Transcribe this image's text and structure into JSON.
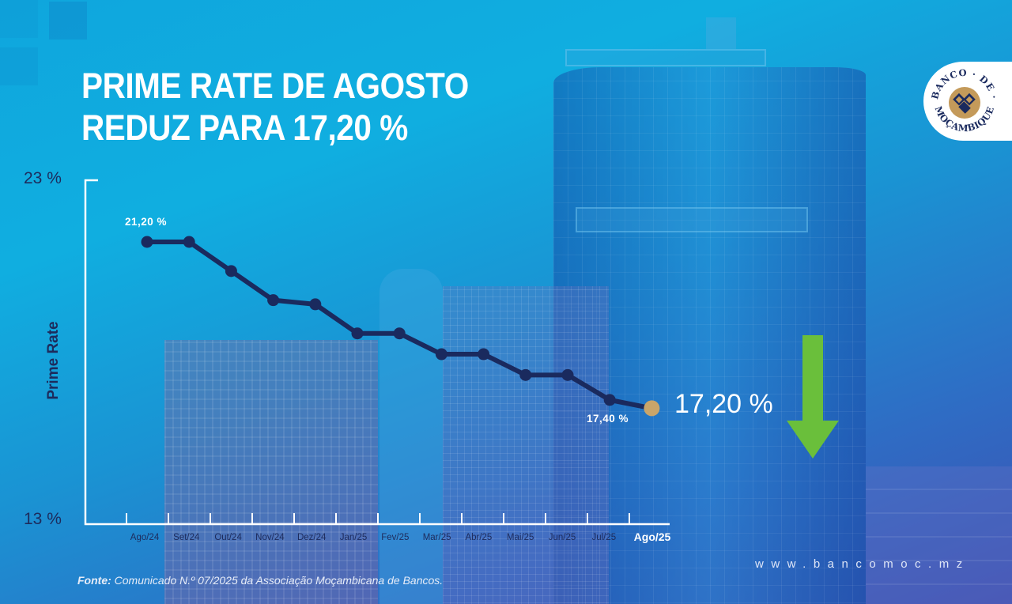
{
  "headline": {
    "line1": "PRIME RATE DE AGOSTO",
    "line2": "REDUZ PARA 17,20 %"
  },
  "logo": {
    "text_top": "BANCO · DE ·",
    "text_bottom": "MOÇAMBIQUE",
    "icon": "banco-de-mocambique-emblem"
  },
  "current_value": "17,20 %",
  "trend_icon": "arrow-down-icon",
  "source": {
    "label": "Fonte:",
    "text": "Comunicado N.º 07/2025 da Associação Moçambicana de Bancos."
  },
  "website": "www.bancomoc.mz",
  "colors": {
    "line": "#1a2a5e",
    "marker": "#1a2a5e",
    "highlight_marker": "#c9a56a",
    "arrow": "#6abf3b",
    "text_dark": "#1d2b5c",
    "text_light": "#ffffff"
  },
  "chart_data": {
    "type": "line",
    "title": "PRIME RATE DE AGOSTO REDUZ PARA 17,20 %",
    "xlabel": "",
    "ylabel": "Prime Rate",
    "ylim": [
      13,
      23
    ],
    "y_tick_labels": [
      "23 %",
      "13 %"
    ],
    "grid": false,
    "legend": null,
    "categories": [
      "Ago/24",
      "Set/24",
      "Out/24",
      "Nov/24",
      "Dez/24",
      "Jan/25",
      "Fev/25",
      "Mar/25",
      "Abr/25",
      "Mai/25",
      "Jun/25",
      "Jul/25",
      "Ago/25"
    ],
    "series": [
      {
        "name": "Prime Rate",
        "values": [
          21.2,
          21.2,
          20.5,
          19.8,
          19.7,
          19.0,
          19.0,
          18.5,
          18.5,
          18.0,
          18.0,
          17.4,
          17.2
        ]
      }
    ],
    "annotations": [
      {
        "category": "Ago/24",
        "text": "21,20 %"
      },
      {
        "category": "Jul/25",
        "text": "17,40 %"
      },
      {
        "category": "Ago/25",
        "text": "17,20 %",
        "highlight": true
      }
    ]
  }
}
